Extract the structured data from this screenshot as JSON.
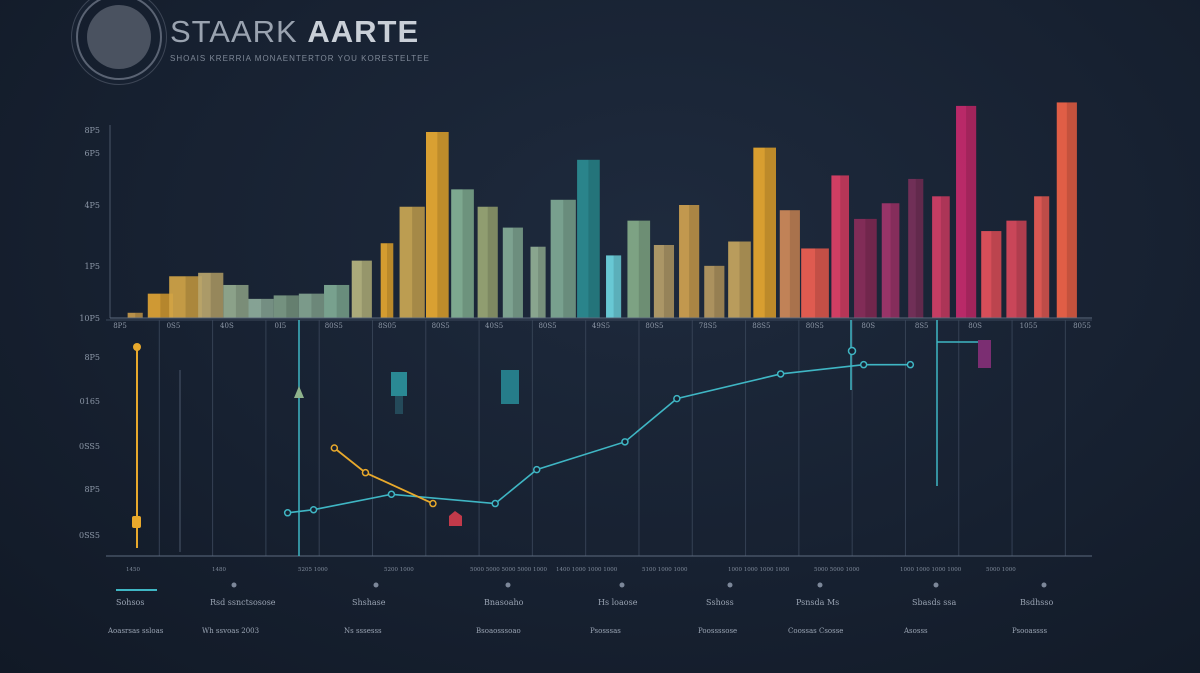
{
  "header": {
    "title_part1": "STAARK ",
    "title_part2": "AARTE",
    "subtitle": "SHOAIS KRERRIA MONAENTERTOR YOU KORESTELTEE"
  },
  "colors": {
    "background": "#172131",
    "line": "#3fb6c4",
    "accent_line": "#e8a92c",
    "axis": "#4a5669"
  },
  "footer": {
    "items": [
      {
        "label": "Sohsos",
        "sub": "Aoasrsas ssloas"
      },
      {
        "label": "Rsd ssnctsosose",
        "sub": "Wh ssvoas 2003"
      },
      {
        "label": "Shshase",
        "sub": "Ns sssesss"
      },
      {
        "label": "Bnasoaho",
        "sub": "Bsoaosssoao"
      },
      {
        "label": "Hs loaose",
        "sub": "Psosssas"
      },
      {
        "label": "Sshoss",
        "sub": "Poossssose"
      },
      {
        "label": "Psnsda Ms",
        "sub": "Coossas Csosse"
      },
      {
        "label": "Sbasds ssa",
        "sub": "Asosss"
      },
      {
        "label": "Bsdhsso",
        "sub": "Psooassss"
      }
    ]
  },
  "chart_data": [
    {
      "type": "bar",
      "title": "",
      "y_tick_labels": [
        "8P5",
        "6P5",
        "4P5",
        "1P5",
        "10P5"
      ],
      "x_tick_labels": [
        "8P5",
        "0S5",
        "40S",
        "0I5",
        "80S5",
        "8S05",
        "80S5",
        "40S5",
        "80S5",
        "49S5",
        "80S5",
        "78S5",
        "88S5",
        "80S5",
        "80S",
        "8S5",
        "80S",
        "1055",
        "8055"
      ],
      "bars": [
        {
          "x": 1,
          "w": 0.6,
          "v": 3,
          "color": "#c79a4c"
        },
        {
          "x": 2,
          "w": 1,
          "v": 14,
          "color": "#e0a434"
        },
        {
          "x": 3,
          "w": 1.3,
          "v": 24,
          "color": "#d2a546"
        },
        {
          "x": 4,
          "w": 1,
          "v": 26,
          "color": "#b8a56d"
        },
        {
          "x": 5,
          "w": 1,
          "v": 19,
          "color": "#96ad90"
        },
        {
          "x": 6,
          "w": 1,
          "v": 11,
          "color": "#8fae9c"
        },
        {
          "x": 7,
          "w": 1,
          "v": 13,
          "color": "#7c9b86"
        },
        {
          "x": 8,
          "w": 1,
          "v": 14,
          "color": "#83a591"
        },
        {
          "x": 9,
          "w": 1,
          "v": 19,
          "color": "#80ad96"
        },
        {
          "x": 10,
          "w": 0.8,
          "v": 33,
          "color": "#b7b680"
        },
        {
          "x": 11,
          "w": 0.5,
          "v": 43,
          "color": "#e4a630"
        },
        {
          "x": 12,
          "w": 1,
          "v": 64,
          "color": "#caa754"
        },
        {
          "x": 13,
          "w": 0.9,
          "v": 107,
          "color": "#e9aa32"
        },
        {
          "x": 14,
          "w": 0.9,
          "v": 74,
          "color": "#86b397"
        },
        {
          "x": 15,
          "w": 0.8,
          "v": 64,
          "color": "#9aa775"
        },
        {
          "x": 16,
          "w": 0.8,
          "v": 52,
          "color": "#86ad98"
        },
        {
          "x": 17,
          "w": 0.6,
          "v": 41,
          "color": "#93b096"
        },
        {
          "x": 18,
          "w": 1,
          "v": 68,
          "color": "#80aa96"
        },
        {
          "x": 19,
          "w": 0.9,
          "v": 91,
          "color": "#2b8c92"
        },
        {
          "x": 20,
          "w": 0.6,
          "v": 36,
          "color": "#6fd6e2"
        },
        {
          "x": 21,
          "w": 0.9,
          "v": 56,
          "color": "#85ad8a"
        },
        {
          "x": 22,
          "w": 0.8,
          "v": 42,
          "color": "#b79f6a"
        },
        {
          "x": 23,
          "w": 0.8,
          "v": 65,
          "color": "#d0a250"
        },
        {
          "x": 24,
          "w": 0.8,
          "v": 30,
          "color": "#b79a62"
        },
        {
          "x": 25,
          "w": 0.9,
          "v": 44,
          "color": "#c7a65f"
        },
        {
          "x": 26,
          "w": 0.9,
          "v": 98,
          "color": "#e8a830"
        },
        {
          "x": 27,
          "w": 0.8,
          "v": 62,
          "color": "#cf8a5a"
        },
        {
          "x": 28,
          "w": 1.1,
          "v": 40,
          "color": "#f05f52"
        },
        {
          "x": 29,
          "w": 0.7,
          "v": 82,
          "color": "#e04067"
        },
        {
          "x": 30,
          "w": 0.9,
          "v": 57,
          "color": "#8a2d5a"
        },
        {
          "x": 31,
          "w": 0.7,
          "v": 66,
          "color": "#a3356d"
        },
        {
          "x": 32,
          "w": 0.6,
          "v": 80,
          "color": "#77305a"
        },
        {
          "x": 33,
          "w": 0.7,
          "v": 70,
          "color": "#d23f67"
        },
        {
          "x": 34,
          "w": 0.8,
          "v": 122,
          "color": "#c72a6d"
        },
        {
          "x": 35,
          "w": 0.8,
          "v": 50,
          "color": "#e6535c"
        },
        {
          "x": 36,
          "w": 0.8,
          "v": 56,
          "color": "#d84a5c"
        },
        {
          "x": 37,
          "w": 0.6,
          "v": 70,
          "color": "#e95c55"
        },
        {
          "x": 38,
          "w": 0.8,
          "v": 124,
          "color": "#f26448"
        }
      ],
      "ylim": [
        0,
        130
      ]
    },
    {
      "type": "line",
      "title": "",
      "y_tick_labels": [
        "8P5",
        "0165",
        "0SS5",
        "8P5",
        "0SS5"
      ],
      "x_tick_labels": [
        "1450",
        "1480",
        "5205 1000",
        "5200 1000",
        "5000 5000 5000 5000 1000",
        "1400 1000 1000 1000",
        "5100 1000 1000",
        "1000 1000 1000 1000",
        "5000 5000 1000",
        "1000 1000 1000 1000",
        "5000 1000"
      ],
      "series": [
        {
          "color": "#3fb6c4",
          "x": [
            3.5,
            4,
            5.5,
            7.5,
            8.3,
            10,
            11,
            13,
            14.6,
            15.5
          ],
          "y": [
            14,
            15,
            20,
            17,
            28,
            37,
            51,
            59,
            62,
            62
          ]
        },
        {
          "color": "#e8a92c",
          "x": [
            4.4,
            5,
            6.3
          ],
          "y": [
            35,
            27,
            17
          ]
        }
      ],
      "ylim": [
        0,
        70
      ],
      "xlim": [
        0,
        19
      ]
    }
  ]
}
